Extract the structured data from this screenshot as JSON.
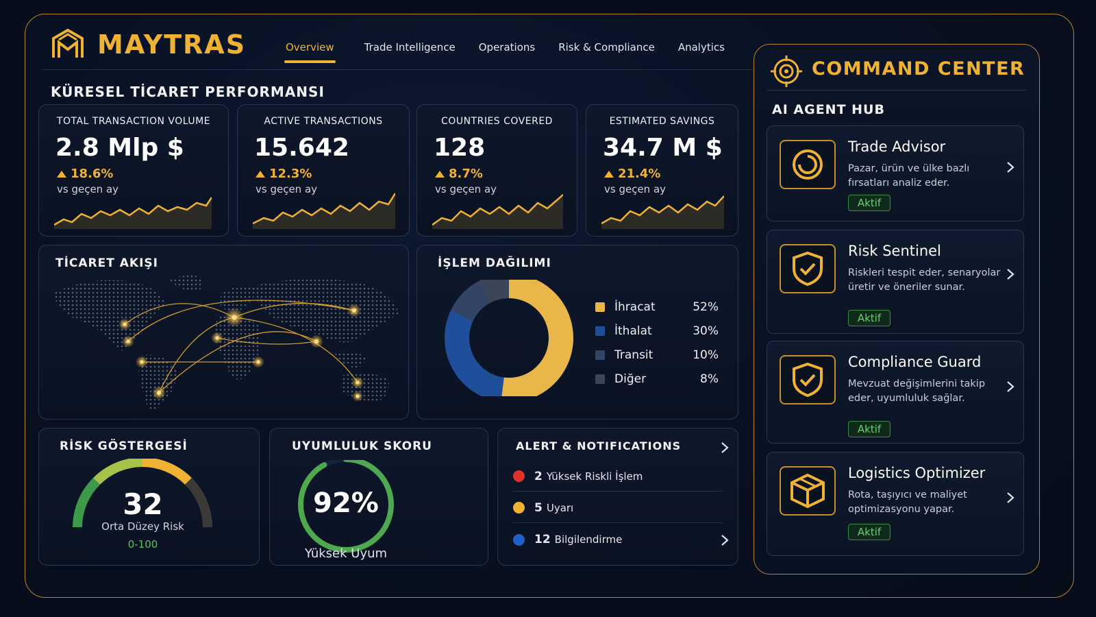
{
  "brand": {
    "name": "MAYTRAS",
    "accent": "#f0b233"
  },
  "nav": {
    "items": [
      {
        "label": "Overview",
        "active": true
      },
      {
        "label": "Trade Intelligence",
        "active": false
      },
      {
        "label": "Operations",
        "active": false
      },
      {
        "label": "Risk & Compliance",
        "active": false
      },
      {
        "label": "Analytics",
        "active": false
      }
    ]
  },
  "page_title": "KÜRESEL TİCARET PERFORMANSI",
  "kpis": [
    {
      "label": "TOTAL TRANSACTION VOLUME",
      "value": "2.8 Mlp $",
      "change": "18.6%",
      "sub": "vs geçen ay"
    },
    {
      "label": "ACTIVE TRANSACTIONS",
      "value": "15.642",
      "change": "12.3%",
      "sub": "vs geçen ay"
    },
    {
      "label": "COUNTRIES COVERED",
      "value": "128",
      "change": "8.7%",
      "sub": "vs geçen ay"
    },
    {
      "label": "ESTIMATED SAVINGS",
      "value": "34.7 M $",
      "change": "21.4%",
      "sub": "vs geçen ay"
    }
  ],
  "trade_flow": {
    "title": "TİCARET AKIŞI"
  },
  "distribution": {
    "title": "İŞLEM DAĞILIMI",
    "items": [
      {
        "name": "İhracat",
        "pct": "52%",
        "value": 52,
        "color": "#e9b64a"
      },
      {
        "name": "İthalat",
        "pct": "30%",
        "value": 30,
        "color": "#1f4f9a"
      },
      {
        "name": "Transit",
        "pct": "10%",
        "value": 10,
        "color": "#334466"
      },
      {
        "name": "Diğer",
        "pct": "8%",
        "value": 8,
        "color": "#3b4658"
      }
    ]
  },
  "risk": {
    "title": "RİSK GÖSTERGESİ",
    "value": "32",
    "label": "Orta Düzey Risk",
    "range": "0-100",
    "level": 32
  },
  "compliance": {
    "title": "UYUMLULUK SKORU",
    "value": "92%",
    "label": "Yüksek Uyum",
    "level": 0.92
  },
  "alerts": {
    "title": "ALERT & NOTIFICATIONS",
    "items": [
      {
        "count": "2",
        "text": "Yüksek Riskli İşlem",
        "color": "#e0312a"
      },
      {
        "count": "5",
        "text": "Uyarı",
        "color": "#f0b233"
      },
      {
        "count": "12",
        "text": "Bilgilendirme",
        "color": "#1f5fc9"
      }
    ]
  },
  "command_center": {
    "title": "COMMAND CENTER",
    "subtitle": "AI AGENT HUB",
    "agents": [
      {
        "name": "Trade Advisor",
        "desc": "Pazar, ürün ve ülke bazlı fırsatları analiz eder.",
        "status": "Aktif",
        "icon": "target-ring-icon"
      },
      {
        "name": "Risk Sentinel",
        "desc": "Riskleri tespit eder, senaryolar üretir ve öneriler sunar.",
        "status": "Aktif",
        "icon": "shield-check-icon"
      },
      {
        "name": "Compliance Guard",
        "desc": "Mevzuat değişimlerini takip eder, uyumluluk sağlar.",
        "status": "Aktif",
        "icon": "shield-check-icon"
      },
      {
        "name": "Logistics Optimizer",
        "desc": "Rota, taşıyıcı ve maliyet optimizasyonu yapar.",
        "status": "Aktif",
        "icon": "package-box-icon"
      }
    ]
  }
}
